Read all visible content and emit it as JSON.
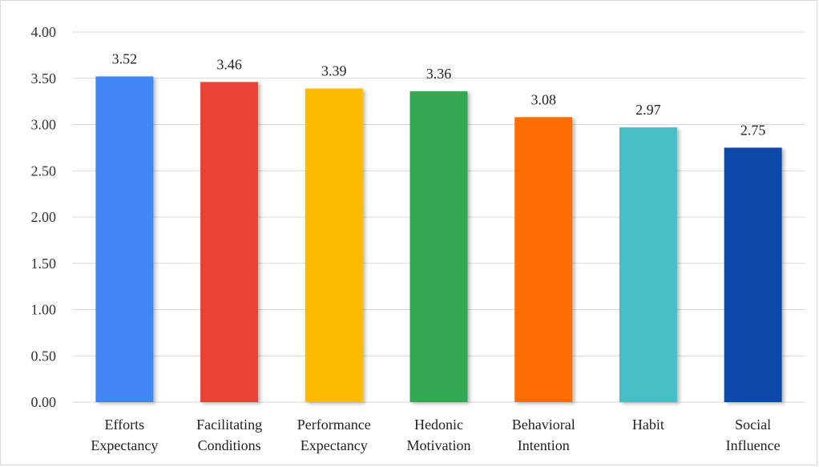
{
  "chart_data": {
    "type": "bar",
    "title": "",
    "xlabel": "",
    "ylabel": "",
    "ylim": [
      0,
      4
    ],
    "yticks": [
      "0.00",
      "0.50",
      "1.00",
      "1.50",
      "2.00",
      "2.50",
      "3.00",
      "3.50",
      "4.00"
    ],
    "grid": true,
    "legend": "none",
    "categories": [
      [
        "Efforts",
        "Expectancy"
      ],
      [
        "Facilitating",
        "Conditions"
      ],
      [
        "Performance",
        "Expectancy"
      ],
      [
        "Hedonic",
        "Motivation"
      ],
      [
        "Behavioral",
        "Intention"
      ],
      [
        "Habit"
      ],
      [
        "Social",
        "Influence"
      ]
    ],
    "values": [
      3.52,
      3.46,
      3.39,
      3.36,
      3.08,
      2.97,
      2.75
    ],
    "value_labels": [
      "3.52",
      "3.46",
      "3.39",
      "3.36",
      "3.08",
      "2.97",
      "2.75"
    ],
    "colors": [
      "#4285f4",
      "#ea4335",
      "#fbbc04",
      "#34a853",
      "#ff6d01",
      "#46bdc6",
      "#0b4aa8"
    ]
  }
}
